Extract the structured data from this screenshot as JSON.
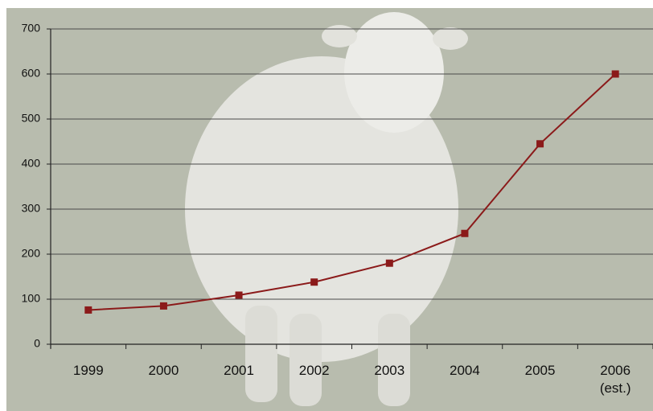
{
  "chart_data": {
    "type": "line",
    "categories": [
      "1999",
      "2000",
      "2001",
      "2002",
      "2003",
      "2004",
      "2005",
      "2006 (est.)"
    ],
    "values": [
      76,
      85,
      109,
      138,
      180,
      246,
      445,
      600
    ],
    "color": "#8b1a1a",
    "ylim": [
      0,
      700
    ],
    "yticks": [
      0,
      100,
      200,
      300,
      400,
      500,
      600,
      700
    ],
    "grid": true
  }
}
